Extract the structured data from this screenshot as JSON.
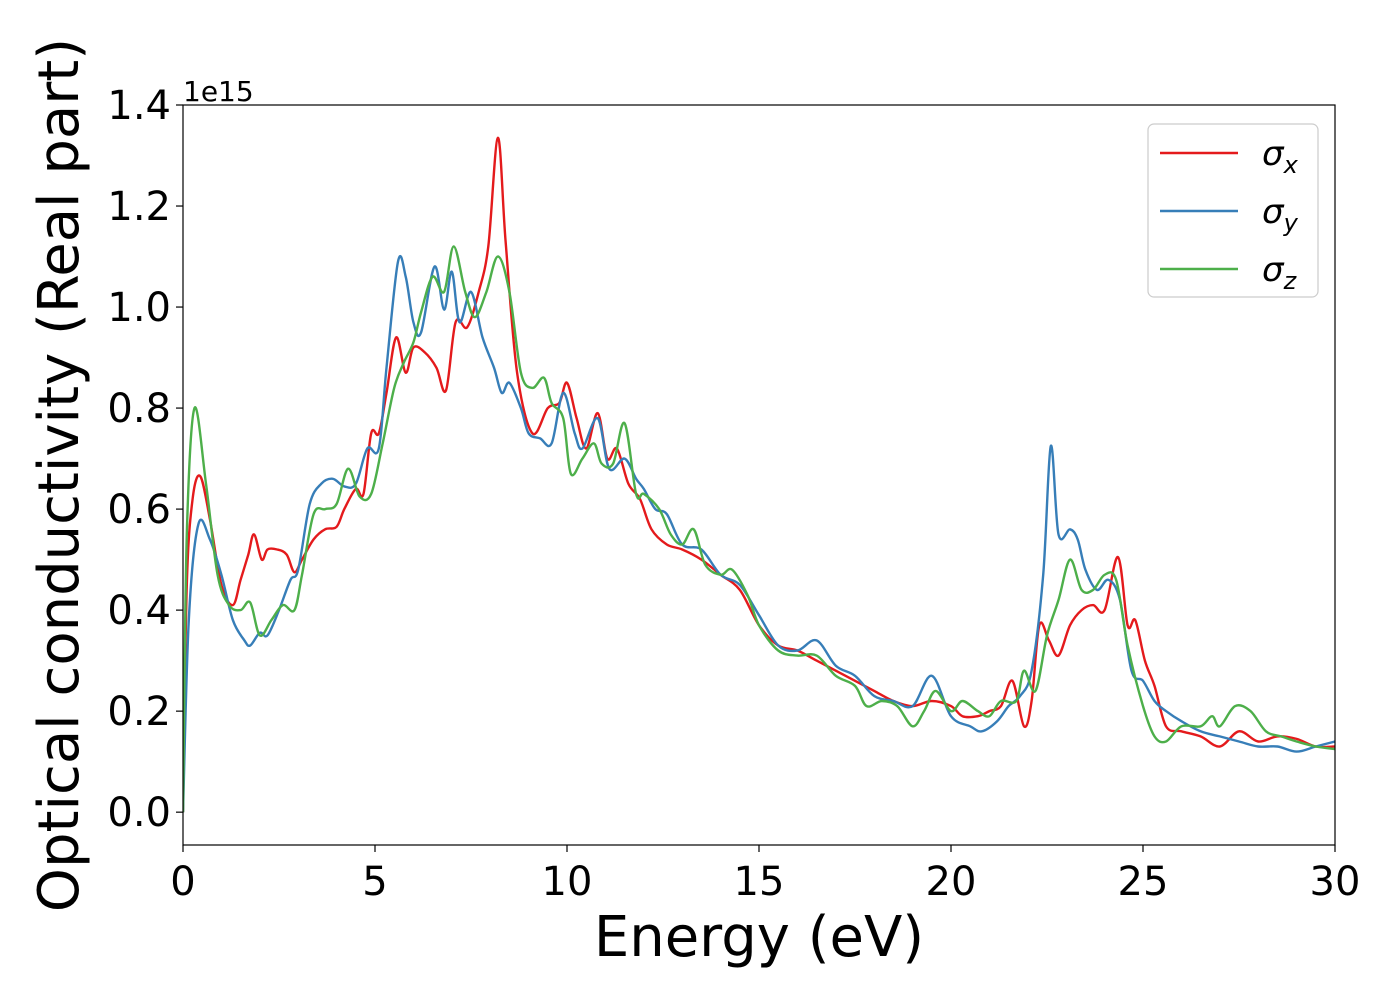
{
  "chart_data": {
    "type": "line",
    "xlabel": "Energy (eV)",
    "ylabel": "Optical conductivity (Real part)",
    "y_offset_label": "1e15",
    "xlim": [
      0,
      30
    ],
    "ylim": [
      -0.065,
      1.4
    ],
    "x_ticks": [
      0,
      5,
      10,
      15,
      20,
      25,
      30
    ],
    "x_tick_labels": [
      "0",
      "5",
      "10",
      "15",
      "20",
      "25",
      "30"
    ],
    "y_ticks": [
      0.0,
      0.2,
      0.4,
      0.6,
      0.8,
      1.0,
      1.2,
      1.4
    ],
    "y_tick_labels": [
      "0.0",
      "0.2",
      "0.4",
      "0.6",
      "0.8",
      "1.0",
      "1.2",
      "1.4"
    ],
    "grid": false,
    "legend_position": "top-right",
    "colors": {
      "sigma_x": "#e41a1c",
      "sigma_y": "#377eb8",
      "sigma_z": "#4daf4a",
      "axis": "#000000",
      "legend_border": "#cccccc"
    },
    "series": [
      {
        "name": "σx",
        "symbol": "σ",
        "subscript": "x",
        "color": "#e41a1c",
        "points": [
          [
            0,
            0
          ],
          [
            0.1,
            0.45
          ],
          [
            0.25,
            0.62
          ],
          [
            0.45,
            0.665
          ],
          [
            0.7,
            0.58
          ],
          [
            1,
            0.45
          ],
          [
            1.3,
            0.41
          ],
          [
            1.5,
            0.46
          ],
          [
            1.7,
            0.51
          ],
          [
            1.85,
            0.55
          ],
          [
            2.05,
            0.5
          ],
          [
            2.2,
            0.52
          ],
          [
            2.45,
            0.52
          ],
          [
            2.7,
            0.51
          ],
          [
            2.9,
            0.475
          ],
          [
            3.1,
            0.5
          ],
          [
            3.4,
            0.54
          ],
          [
            3.7,
            0.56
          ],
          [
            4,
            0.565
          ],
          [
            4.2,
            0.6
          ],
          [
            4.5,
            0.64
          ],
          [
            4.7,
            0.63
          ],
          [
            4.9,
            0.75
          ],
          [
            5.1,
            0.75
          ],
          [
            5.3,
            0.83
          ],
          [
            5.55,
            0.94
          ],
          [
            5.8,
            0.87
          ],
          [
            6,
            0.92
          ],
          [
            6.3,
            0.91
          ],
          [
            6.6,
            0.88
          ],
          [
            6.85,
            0.835
          ],
          [
            7.1,
            0.97
          ],
          [
            7.4,
            0.96
          ],
          [
            7.7,
            1.03
          ],
          [
            7.95,
            1.12
          ],
          [
            8.2,
            1.335
          ],
          [
            8.4,
            1.13
          ],
          [
            8.7,
            0.87
          ],
          [
            9.1,
            0.75
          ],
          [
            9.5,
            0.8
          ],
          [
            9.8,
            0.81
          ],
          [
            10,
            0.85
          ],
          [
            10.25,
            0.78
          ],
          [
            10.5,
            0.72
          ],
          [
            10.8,
            0.79
          ],
          [
            11.05,
            0.7
          ],
          [
            11.3,
            0.72
          ],
          [
            11.6,
            0.65
          ],
          [
            11.9,
            0.62
          ],
          [
            12.2,
            0.56
          ],
          [
            12.6,
            0.53
          ],
          [
            13,
            0.52
          ],
          [
            13.5,
            0.5
          ],
          [
            14,
            0.47
          ],
          [
            14.5,
            0.44
          ],
          [
            15,
            0.37
          ],
          [
            15.5,
            0.33
          ],
          [
            16,
            0.32
          ],
          [
            16.5,
            0.3
          ],
          [
            17,
            0.28
          ],
          [
            17.5,
            0.26
          ],
          [
            18,
            0.24
          ],
          [
            18.5,
            0.22
          ],
          [
            19,
            0.21
          ],
          [
            19.5,
            0.22
          ],
          [
            20,
            0.21
          ],
          [
            20.3,
            0.19
          ],
          [
            20.7,
            0.19
          ],
          [
            21,
            0.2
          ],
          [
            21.3,
            0.21
          ],
          [
            21.6,
            0.26
          ],
          [
            21.9,
            0.17
          ],
          [
            22.1,
            0.22
          ],
          [
            22.3,
            0.37
          ],
          [
            22.55,
            0.34
          ],
          [
            22.8,
            0.31
          ],
          [
            23.1,
            0.37
          ],
          [
            23.4,
            0.4
          ],
          [
            23.7,
            0.41
          ],
          [
            24,
            0.4
          ],
          [
            24.35,
            0.505
          ],
          [
            24.6,
            0.37
          ],
          [
            24.8,
            0.38
          ],
          [
            25.05,
            0.3
          ],
          [
            25.3,
            0.25
          ],
          [
            25.6,
            0.17
          ],
          [
            26,
            0.16
          ],
          [
            26.5,
            0.15
          ],
          [
            27,
            0.13
          ],
          [
            27.5,
            0.16
          ],
          [
            28,
            0.14
          ],
          [
            28.5,
            0.15
          ],
          [
            29,
            0.145
          ],
          [
            29.5,
            0.13
          ],
          [
            30,
            0.13
          ]
        ]
      },
      {
        "name": "σy",
        "symbol": "σ",
        "subscript": "y",
        "color": "#377eb8",
        "points": [
          [
            0,
            0
          ],
          [
            0.15,
            0.38
          ],
          [
            0.4,
            0.57
          ],
          [
            0.7,
            0.54
          ],
          [
            1,
            0.47
          ],
          [
            1.3,
            0.38
          ],
          [
            1.6,
            0.34
          ],
          [
            1.75,
            0.33
          ],
          [
            2,
            0.355
          ],
          [
            2.2,
            0.35
          ],
          [
            2.5,
            0.4
          ],
          [
            2.8,
            0.46
          ],
          [
            3,
            0.48
          ],
          [
            3.3,
            0.61
          ],
          [
            3.6,
            0.65
          ],
          [
            3.9,
            0.66
          ],
          [
            4.2,
            0.645
          ],
          [
            4.5,
            0.65
          ],
          [
            4.8,
            0.72
          ],
          [
            5.1,
            0.72
          ],
          [
            5.3,
            0.88
          ],
          [
            5.6,
            1.09
          ],
          [
            5.8,
            1.06
          ],
          [
            6,
            0.97
          ],
          [
            6.2,
            0.95
          ],
          [
            6.55,
            1.08
          ],
          [
            6.8,
            0.995
          ],
          [
            7,
            1.07
          ],
          [
            7.2,
            0.97
          ],
          [
            7.5,
            1.03
          ],
          [
            7.8,
            0.94
          ],
          [
            8.1,
            0.88
          ],
          [
            8.3,
            0.83
          ],
          [
            8.5,
            0.85
          ],
          [
            8.8,
            0.8
          ],
          [
            9,
            0.75
          ],
          [
            9.3,
            0.74
          ],
          [
            9.6,
            0.73
          ],
          [
            9.9,
            0.83
          ],
          [
            10.2,
            0.75
          ],
          [
            10.4,
            0.72
          ],
          [
            10.8,
            0.78
          ],
          [
            11.1,
            0.68
          ],
          [
            11.5,
            0.7
          ],
          [
            11.8,
            0.66
          ],
          [
            12,
            0.64
          ],
          [
            12.3,
            0.6
          ],
          [
            12.6,
            0.59
          ],
          [
            13,
            0.53
          ],
          [
            13.5,
            0.52
          ],
          [
            14,
            0.47
          ],
          [
            14.5,
            0.45
          ],
          [
            15,
            0.39
          ],
          [
            15.5,
            0.33
          ],
          [
            16,
            0.32
          ],
          [
            16.5,
            0.34
          ],
          [
            17,
            0.29
          ],
          [
            17.5,
            0.27
          ],
          [
            18,
            0.23
          ],
          [
            18.5,
            0.22
          ],
          [
            19,
            0.21
          ],
          [
            19.5,
            0.27
          ],
          [
            20,
            0.19
          ],
          [
            20.5,
            0.17
          ],
          [
            20.8,
            0.16
          ],
          [
            21.2,
            0.18
          ],
          [
            21.5,
            0.21
          ],
          [
            21.8,
            0.23
          ],
          [
            22.1,
            0.28
          ],
          [
            22.4,
            0.47
          ],
          [
            22.6,
            0.725
          ],
          [
            22.8,
            0.55
          ],
          [
            23.1,
            0.56
          ],
          [
            23.3,
            0.54
          ],
          [
            23.5,
            0.48
          ],
          [
            23.8,
            0.44
          ],
          [
            24.1,
            0.46
          ],
          [
            24.4,
            0.42
          ],
          [
            24.7,
            0.28
          ],
          [
            25,
            0.26
          ],
          [
            25.3,
            0.22
          ],
          [
            25.6,
            0.2
          ],
          [
            26,
            0.18
          ],
          [
            26.5,
            0.16
          ],
          [
            27,
            0.15
          ],
          [
            27.5,
            0.14
          ],
          [
            28,
            0.13
          ],
          [
            28.5,
            0.13
          ],
          [
            29,
            0.12
          ],
          [
            29.5,
            0.13
          ],
          [
            30,
            0.14
          ]
        ]
      },
      {
        "name": "σz",
        "symbol": "σ",
        "subscript": "z",
        "color": "#4daf4a",
        "points": [
          [
            0,
            0
          ],
          [
            0.1,
            0.55
          ],
          [
            0.3,
            0.8
          ],
          [
            0.6,
            0.65
          ],
          [
            0.9,
            0.47
          ],
          [
            1.2,
            0.41
          ],
          [
            1.5,
            0.4
          ],
          [
            1.75,
            0.415
          ],
          [
            2,
            0.35
          ],
          [
            2.3,
            0.38
          ],
          [
            2.6,
            0.41
          ],
          [
            2.9,
            0.4
          ],
          [
            3.1,
            0.47
          ],
          [
            3.4,
            0.59
          ],
          [
            3.7,
            0.6
          ],
          [
            4,
            0.61
          ],
          [
            4.3,
            0.68
          ],
          [
            4.6,
            0.625
          ],
          [
            4.9,
            0.63
          ],
          [
            5.2,
            0.73
          ],
          [
            5.5,
            0.84
          ],
          [
            5.75,
            0.89
          ],
          [
            6,
            0.93
          ],
          [
            6.2,
            0.99
          ],
          [
            6.5,
            1.06
          ],
          [
            6.8,
            1.03
          ],
          [
            7.05,
            1.12
          ],
          [
            7.35,
            1.03
          ],
          [
            7.6,
            0.98
          ],
          [
            7.9,
            1.03
          ],
          [
            8.2,
            1.1
          ],
          [
            8.5,
            1.03
          ],
          [
            8.8,
            0.87
          ],
          [
            9.1,
            0.84
          ],
          [
            9.4,
            0.86
          ],
          [
            9.6,
            0.81
          ],
          [
            9.9,
            0.78
          ],
          [
            10.1,
            0.67
          ],
          [
            10.4,
            0.7
          ],
          [
            10.7,
            0.73
          ],
          [
            10.9,
            0.69
          ],
          [
            11.2,
            0.69
          ],
          [
            11.5,
            0.77
          ],
          [
            11.8,
            0.63
          ],
          [
            12,
            0.63
          ],
          [
            12.4,
            0.6
          ],
          [
            12.7,
            0.55
          ],
          [
            13,
            0.53
          ],
          [
            13.3,
            0.56
          ],
          [
            13.6,
            0.49
          ],
          [
            14,
            0.47
          ],
          [
            14.3,
            0.48
          ],
          [
            14.7,
            0.43
          ],
          [
            15,
            0.37
          ],
          [
            15.5,
            0.32
          ],
          [
            16,
            0.31
          ],
          [
            16.5,
            0.31
          ],
          [
            17,
            0.27
          ],
          [
            17.5,
            0.25
          ],
          [
            17.8,
            0.21
          ],
          [
            18.2,
            0.22
          ],
          [
            18.6,
            0.21
          ],
          [
            19,
            0.17
          ],
          [
            19.3,
            0.2
          ],
          [
            19.6,
            0.24
          ],
          [
            20,
            0.2
          ],
          [
            20.3,
            0.22
          ],
          [
            20.7,
            0.2
          ],
          [
            21,
            0.19
          ],
          [
            21.3,
            0.22
          ],
          [
            21.7,
            0.22
          ],
          [
            21.9,
            0.28
          ],
          [
            22.2,
            0.24
          ],
          [
            22.5,
            0.35
          ],
          [
            22.8,
            0.42
          ],
          [
            23.1,
            0.5
          ],
          [
            23.4,
            0.44
          ],
          [
            23.7,
            0.44
          ],
          [
            24,
            0.47
          ],
          [
            24.3,
            0.46
          ],
          [
            24.6,
            0.33
          ],
          [
            25,
            0.21
          ],
          [
            25.3,
            0.15
          ],
          [
            25.6,
            0.14
          ],
          [
            26,
            0.17
          ],
          [
            26.5,
            0.17
          ],
          [
            26.8,
            0.19
          ],
          [
            27,
            0.17
          ],
          [
            27.4,
            0.21
          ],
          [
            27.8,
            0.2
          ],
          [
            28.2,
            0.16
          ],
          [
            28.6,
            0.15
          ],
          [
            29,
            0.14
          ],
          [
            29.5,
            0.13
          ],
          [
            30,
            0.125
          ]
        ]
      }
    ]
  }
}
